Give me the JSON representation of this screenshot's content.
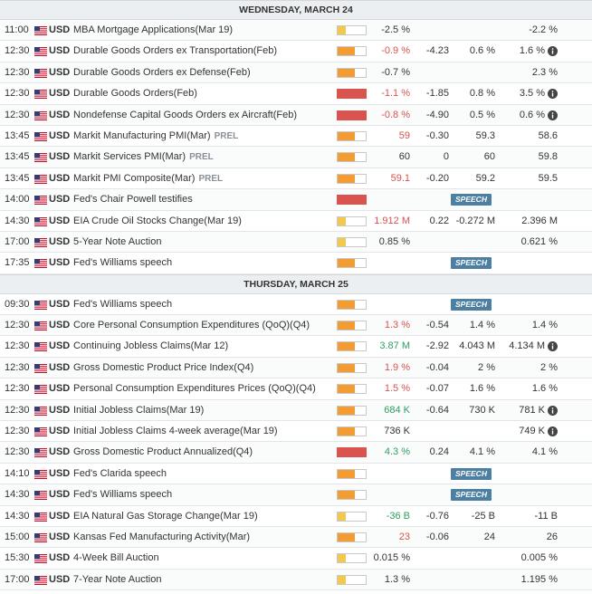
{
  "days": [
    {
      "title": "WEDNESDAY, MARCH 24",
      "rows": [
        {
          "time": "11:00",
          "currency": "USD",
          "event": "MBA Mortgage Applications(Mar 19)",
          "prel": "",
          "importance": "low",
          "actual": "-2.5 %",
          "actual_color": "neu",
          "deviation": "",
          "consensus": "",
          "previous": "-2.2 %",
          "info": false,
          "badge": ""
        },
        {
          "time": "12:30",
          "currency": "USD",
          "event": "Durable Goods Orders ex Transportation(Feb)",
          "prel": "",
          "importance": "med",
          "actual": "-0.9 %",
          "actual_color": "neg",
          "deviation": "-4.23",
          "consensus": "0.6 %",
          "previous": "1.6 %",
          "info": true,
          "badge": ""
        },
        {
          "time": "12:30",
          "currency": "USD",
          "event": "Durable Goods Orders ex Defense(Feb)",
          "prel": "",
          "importance": "med",
          "actual": "-0.7 %",
          "actual_color": "neu",
          "deviation": "",
          "consensus": "",
          "previous": "2.3 %",
          "info": false,
          "badge": ""
        },
        {
          "time": "12:30",
          "currency": "USD",
          "event": "Durable Goods Orders(Feb)",
          "prel": "",
          "importance": "high",
          "actual": "-1.1 %",
          "actual_color": "neg",
          "deviation": "-1.85",
          "consensus": "0.8 %",
          "previous": "3.5 %",
          "info": true,
          "badge": ""
        },
        {
          "time": "12:30",
          "currency": "USD",
          "event": "Nondefense Capital Goods Orders ex Aircraft(Feb)",
          "prel": "",
          "importance": "high",
          "actual": "-0.8 %",
          "actual_color": "neg",
          "deviation": "-4.90",
          "consensus": "0.5 %",
          "previous": "0.6 %",
          "info": true,
          "badge": ""
        },
        {
          "time": "13:45",
          "currency": "USD",
          "event": "Markit Manufacturing PMI(Mar)",
          "prel": "PREL",
          "importance": "med",
          "actual": "59",
          "actual_color": "neg",
          "deviation": "-0.30",
          "consensus": "59.3",
          "previous": "58.6",
          "info": false,
          "badge": ""
        },
        {
          "time": "13:45",
          "currency": "USD",
          "event": "Markit Services PMI(Mar)",
          "prel": "PREL",
          "importance": "med",
          "actual": "60",
          "actual_color": "neu",
          "deviation": "0",
          "consensus": "60",
          "previous": "59.8",
          "info": false,
          "badge": ""
        },
        {
          "time": "13:45",
          "currency": "USD",
          "event": "Markit PMI Composite(Mar)",
          "prel": "PREL",
          "importance": "med",
          "actual": "59.1",
          "actual_color": "neg",
          "deviation": "-0.20",
          "consensus": "59.2",
          "previous": "59.5",
          "info": false,
          "badge": ""
        },
        {
          "time": "14:00",
          "currency": "USD",
          "event": "Fed's Chair Powell testifies",
          "prel": "",
          "importance": "high",
          "actual": "",
          "actual_color": "neu",
          "deviation": "",
          "consensus": "",
          "previous": "",
          "info": false,
          "badge": "SPEECH"
        },
        {
          "time": "14:30",
          "currency": "USD",
          "event": "EIA Crude Oil Stocks Change(Mar 19)",
          "prel": "",
          "importance": "low",
          "actual": "1.912 M",
          "actual_color": "neg",
          "deviation": "0.22",
          "consensus": "-0.272 M",
          "previous": "2.396 M",
          "info": false,
          "badge": ""
        },
        {
          "time": "17:00",
          "currency": "USD",
          "event": "5-Year Note Auction",
          "prel": "",
          "importance": "low",
          "actual": "0.85 %",
          "actual_color": "neu",
          "deviation": "",
          "consensus": "",
          "previous": "0.621 %",
          "info": false,
          "badge": ""
        },
        {
          "time": "17:35",
          "currency": "USD",
          "event": "Fed's Williams speech",
          "prel": "",
          "importance": "med",
          "actual": "",
          "actual_color": "neu",
          "deviation": "",
          "consensus": "",
          "previous": "",
          "info": false,
          "badge": "SPEECH"
        }
      ]
    },
    {
      "title": "THURSDAY, MARCH 25",
      "rows": [
        {
          "time": "09:30",
          "currency": "USD",
          "event": "Fed's Williams speech",
          "prel": "",
          "importance": "med",
          "actual": "",
          "actual_color": "neu",
          "deviation": "",
          "consensus": "",
          "previous": "",
          "info": false,
          "badge": "SPEECH"
        },
        {
          "time": "12:30",
          "currency": "USD",
          "event": "Core Personal Consumption Expenditures (QoQ)(Q4)",
          "prel": "",
          "importance": "med",
          "actual": "1.3 %",
          "actual_color": "neg",
          "deviation": "-0.54",
          "consensus": "1.4 %",
          "previous": "1.4 %",
          "info": false,
          "badge": ""
        },
        {
          "time": "12:30",
          "currency": "USD",
          "event": "Continuing Jobless Claims(Mar 12)",
          "prel": "",
          "importance": "med",
          "actual": "3.87 M",
          "actual_color": "pos",
          "deviation": "-2.92",
          "consensus": "4.043 M",
          "previous": "4.134 M",
          "info": true,
          "badge": ""
        },
        {
          "time": "12:30",
          "currency": "USD",
          "event": "Gross Domestic Product Price Index(Q4)",
          "prel": "",
          "importance": "med",
          "actual": "1.9 %",
          "actual_color": "neg",
          "deviation": "-0.04",
          "consensus": "2 %",
          "previous": "2 %",
          "info": false,
          "badge": ""
        },
        {
          "time": "12:30",
          "currency": "USD",
          "event": "Personal Consumption Expenditures Prices (QoQ)(Q4)",
          "prel": "",
          "importance": "med",
          "actual": "1.5 %",
          "actual_color": "neg",
          "deviation": "-0.07",
          "consensus": "1.6 %",
          "previous": "1.6 %",
          "info": false,
          "badge": ""
        },
        {
          "time": "12:30",
          "currency": "USD",
          "event": "Initial Jobless Claims(Mar 19)",
          "prel": "",
          "importance": "med",
          "actual": "684 K",
          "actual_color": "pos",
          "deviation": "-0.64",
          "consensus": "730 K",
          "previous": "781 K",
          "info": true,
          "badge": ""
        },
        {
          "time": "12:30",
          "currency": "USD",
          "event": "Initial Jobless Claims 4-week average(Mar 19)",
          "prel": "",
          "importance": "med",
          "actual": "736 K",
          "actual_color": "neu",
          "deviation": "",
          "consensus": "",
          "previous": "749 K",
          "info": true,
          "badge": ""
        },
        {
          "time": "12:30",
          "currency": "USD",
          "event": "Gross Domestic Product Annualized(Q4)",
          "prel": "",
          "importance": "high",
          "actual": "4.3 %",
          "actual_color": "pos",
          "deviation": "0.24",
          "consensus": "4.1 %",
          "previous": "4.1 %",
          "info": false,
          "badge": ""
        },
        {
          "time": "14:10",
          "currency": "USD",
          "event": "Fed's Clarida speech",
          "prel": "",
          "importance": "med",
          "actual": "",
          "actual_color": "neu",
          "deviation": "",
          "consensus": "",
          "previous": "",
          "info": false,
          "badge": "SPEECH"
        },
        {
          "time": "14:30",
          "currency": "USD",
          "event": "Fed's Williams speech",
          "prel": "",
          "importance": "med",
          "actual": "",
          "actual_color": "neu",
          "deviation": "",
          "consensus": "",
          "previous": "",
          "info": false,
          "badge": "SPEECH"
        },
        {
          "time": "14:30",
          "currency": "USD",
          "event": "EIA Natural Gas Storage Change(Mar 19)",
          "prel": "",
          "importance": "low",
          "actual": "-36 B",
          "actual_color": "pos",
          "deviation": "-0.76",
          "consensus": "-25 B",
          "previous": "-11 B",
          "info": false,
          "badge": ""
        },
        {
          "time": "15:00",
          "currency": "USD",
          "event": "Kansas Fed Manufacturing Activity(Mar)",
          "prel": "",
          "importance": "med",
          "actual": "23",
          "actual_color": "neg",
          "deviation": "-0.06",
          "consensus": "24",
          "previous": "26",
          "info": false,
          "badge": ""
        },
        {
          "time": "15:30",
          "currency": "USD",
          "event": "4-Week Bill Auction",
          "prel": "",
          "importance": "low",
          "actual": "0.015 %",
          "actual_color": "neu",
          "deviation": "",
          "consensus": "",
          "previous": "0.005 %",
          "info": false,
          "badge": ""
        },
        {
          "time": "17:00",
          "currency": "USD",
          "event": "7-Year Note Auction",
          "prel": "",
          "importance": "low",
          "actual": "1.3 %",
          "actual_color": "neu",
          "deviation": "",
          "consensus": "",
          "previous": "1.195 %",
          "info": false,
          "badge": ""
        }
      ]
    }
  ],
  "colors": {
    "negative": "#d9534f",
    "positive": "#2e9f62",
    "speech_badge": "#4d7fa3",
    "low": "#f2c94c",
    "medium": "#f39c33",
    "high": "#d9534f"
  },
  "icons": {
    "flag": "us-flag-icon",
    "info": "info-icon"
  }
}
